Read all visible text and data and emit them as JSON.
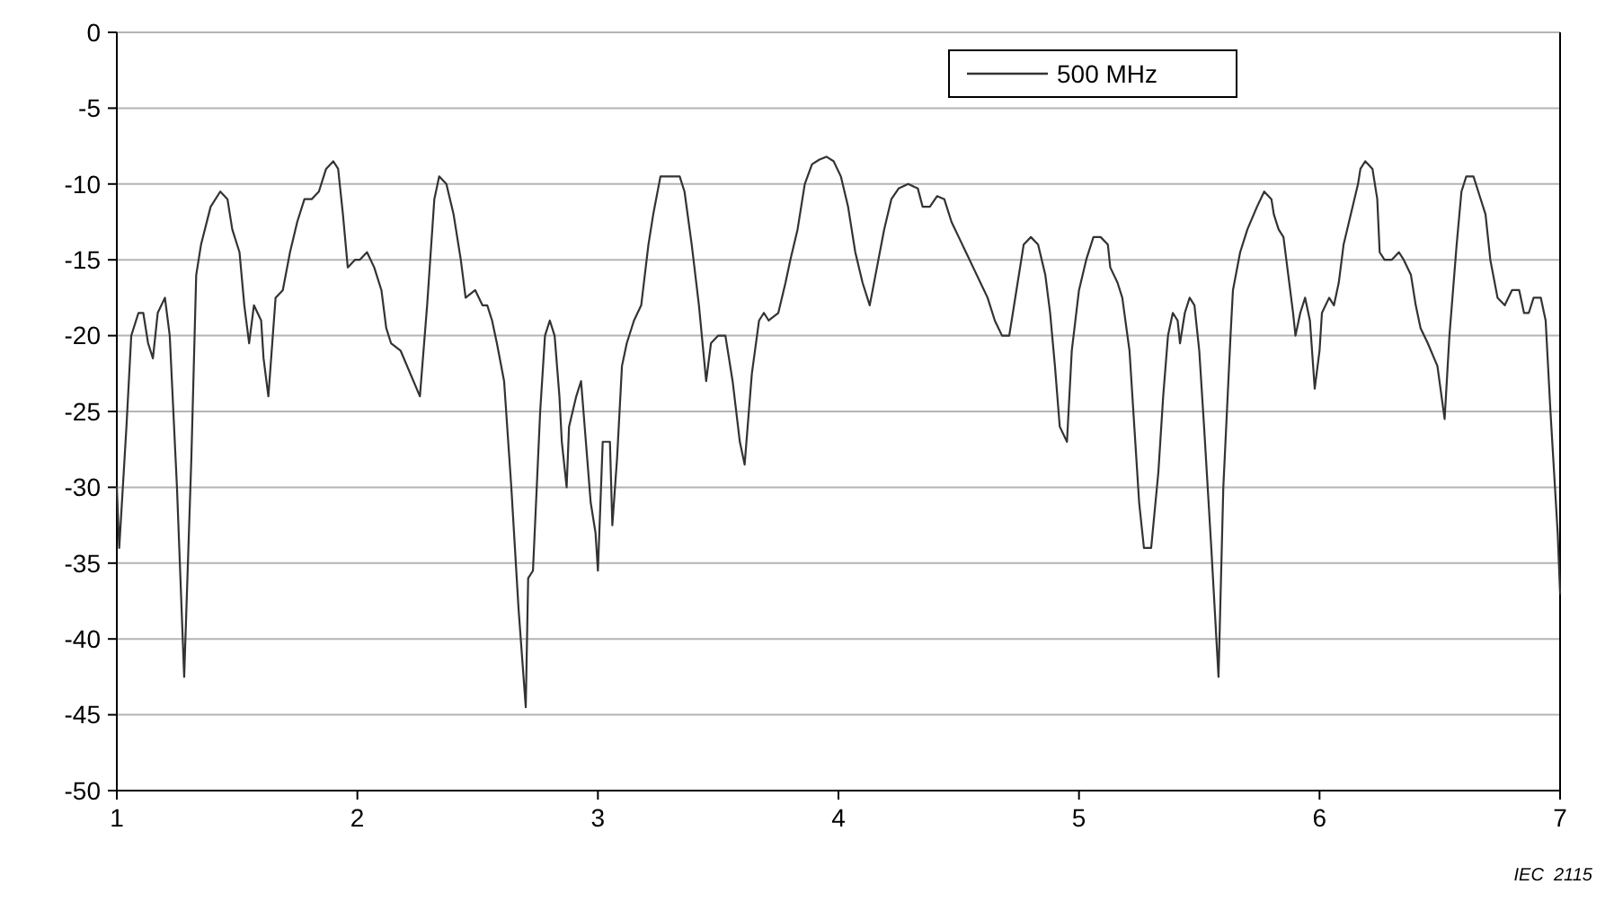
{
  "chart_data": {
    "type": "line",
    "xlim": [
      1,
      7
    ],
    "xticks": [
      1,
      2,
      3,
      4,
      5,
      6,
      7
    ],
    "ylim": [
      -50,
      0
    ],
    "yticks": [
      -50,
      -45,
      -40,
      -35,
      -30,
      -25,
      -20,
      -15,
      -10,
      -5,
      0
    ],
    "grid": "y",
    "legend": "top right",
    "marker": "none",
    "line_style": "solid",
    "annotations": [
      "IEC  2115"
    ],
    "series": [
      {
        "name": "500 MHz",
        "color": "#333333",
        "x": [
          1.0,
          1.01,
          1.04,
          1.06,
          1.09,
          1.11,
          1.13,
          1.15,
          1.17,
          1.2,
          1.22,
          1.25,
          1.28,
          1.31,
          1.33,
          1.35,
          1.39,
          1.43,
          1.46,
          1.48,
          1.51,
          1.53,
          1.55,
          1.57,
          1.6,
          1.61,
          1.63,
          1.66,
          1.69,
          1.72,
          1.75,
          1.78,
          1.81,
          1.84,
          1.87,
          1.9,
          1.92,
          1.94,
          1.96,
          1.99,
          2.01,
          2.04,
          2.07,
          2.1,
          2.12,
          2.14,
          2.18,
          2.26,
          2.29,
          2.32,
          2.34,
          2.37,
          2.4,
          2.43,
          2.45,
          2.49,
          2.52,
          2.54,
          2.56,
          2.58,
          2.61,
          2.64,
          2.67,
          2.7,
          2.71,
          2.73,
          2.76,
          2.78,
          2.8,
          2.82,
          2.84,
          2.85,
          2.87,
          2.88,
          2.91,
          2.93,
          2.94,
          2.97,
          2.99,
          3.0,
          3.02,
          3.05,
          3.06,
          3.08,
          3.1,
          3.12,
          3.15,
          3.18,
          3.21,
          3.23,
          3.26,
          3.29,
          3.34,
          3.36,
          3.39,
          3.42,
          3.45,
          3.47,
          3.5,
          3.53,
          3.56,
          3.59,
          3.61,
          3.64,
          3.67,
          3.69,
          3.71,
          3.75,
          3.78,
          3.8,
          3.83,
          3.86,
          3.89,
          3.92,
          3.95,
          3.98,
          4.01,
          4.04,
          4.07,
          4.1,
          4.13,
          4.16,
          4.19,
          4.22,
          4.25,
          4.29,
          4.33,
          4.35,
          4.38,
          4.41,
          4.44,
          4.47,
          4.5,
          4.53,
          4.56,
          4.59,
          4.62,
          4.65,
          4.68,
          4.71,
          4.74,
          4.77,
          4.8,
          4.83,
          4.86,
          4.88,
          4.9,
          4.92,
          4.95,
          4.97,
          5.0,
          5.03,
          5.06,
          5.09,
          5.12,
          5.13,
          5.16,
          5.18,
          5.21,
          5.23,
          5.25,
          5.27,
          5.3,
          5.33,
          5.35,
          5.37,
          5.39,
          5.41,
          5.42,
          5.44,
          5.46,
          5.48,
          5.5,
          5.52,
          5.55,
          5.58,
          5.6,
          5.63,
          5.64,
          5.67,
          5.7,
          5.74,
          5.77,
          5.8,
          5.81,
          5.83,
          5.85,
          5.87,
          5.89,
          5.9,
          5.92,
          5.94,
          5.96,
          5.98,
          6.0,
          6.01,
          6.04,
          6.06,
          6.08,
          6.1,
          6.13,
          6.16,
          6.17,
          6.19,
          6.22,
          6.24,
          6.25,
          6.27,
          6.3,
          6.33,
          6.35,
          6.38,
          6.4,
          6.42,
          6.45,
          6.49,
          6.52,
          6.54,
          6.57,
          6.59,
          6.61,
          6.64,
          6.66,
          6.69,
          6.71,
          6.74,
          6.77,
          6.8,
          6.83,
          6.85,
          6.87,
          6.89,
          6.92,
          6.94,
          6.96,
          6.99,
          7.0
        ],
        "values": [
          -30,
          -34,
          -26,
          -20,
          -18.5,
          -18.5,
          -20.5,
          -21.5,
          -18.5,
          -17.5,
          -20,
          -30,
          -42.5,
          -28,
          -16,
          -14,
          -11.5,
          -10.5,
          -11,
          -13,
          -14.5,
          -18,
          -20.5,
          -18,
          -19,
          -21.5,
          -24,
          -17.5,
          -17,
          -14.5,
          -12.5,
          -11,
          -11,
          -10.5,
          -9,
          -8.5,
          -9,
          -12,
          -15.5,
          -15,
          -15,
          -14.5,
          -15.5,
          -17,
          -19.5,
          -20.5,
          -21,
          -24,
          -18,
          -11,
          -9.5,
          -10,
          -12,
          -15,
          -17.5,
          -17,
          -18,
          -18,
          -19,
          -20.5,
          -23,
          -30,
          -38,
          -44.5,
          -36,
          -35.5,
          -25,
          -20,
          -19,
          -20,
          -24,
          -27,
          -30,
          -26,
          -24,
          -23,
          -25,
          -31,
          -33,
          -35.5,
          -27,
          -27,
          -32.5,
          -28,
          -22,
          -20.5,
          -19,
          -18,
          -14,
          -12,
          -9.5,
          -9.5,
          -9.5,
          -10.5,
          -14,
          -18,
          -23,
          -20.5,
          -20,
          -20,
          -23,
          -27,
          -28.5,
          -22.5,
          -19,
          -18.5,
          -19,
          -18.5,
          -16.5,
          -15,
          -13,
          -10,
          -8.7,
          -8.4,
          -8.2,
          -8.5,
          -9.5,
          -11.5,
          -14.5,
          -16.5,
          -18,
          -15.5,
          -13,
          -11,
          -10.3,
          -10,
          -10.3,
          -11.5,
          -11.5,
          -10.8,
          -11,
          -12.5,
          -13.5,
          -14.5,
          -15.5,
          -16.5,
          -17.5,
          -19,
          -20,
          -20,
          -17,
          -14,
          -13.5,
          -14,
          -16,
          -18.5,
          -22,
          -26,
          -27,
          -21,
          -17,
          -15,
          -13.5,
          -13.5,
          -14,
          -15.5,
          -16.5,
          -17.5,
          -21,
          -26,
          -31,
          -34,
          -34,
          -29,
          -24,
          -20,
          -18.5,
          -19,
          -20.5,
          -18.5,
          -17.5,
          -18,
          -21,
          -26,
          -34,
          -42.5,
          -30,
          -20,
          -17,
          -14.5,
          -13,
          -11.5,
          -10.5,
          -11,
          -12,
          -13,
          -13.5,
          -16,
          -18.5,
          -20,
          -18.5,
          -17.5,
          -19,
          -23.5,
          -21,
          -18.5,
          -17.5,
          -18,
          -16.5,
          -14,
          -12,
          -10,
          -9,
          -8.5,
          -9,
          -11,
          -14.5,
          -15,
          -15,
          -14.5,
          -15,
          -16,
          -18,
          -19.5,
          -20.5,
          -22,
          -25.5,
          -20,
          -14,
          -10.5,
          -9.5,
          -9.5,
          -10.5,
          -12,
          -15,
          -17.5,
          -18,
          -17,
          -17,
          -18.5,
          -18.5,
          -17.5,
          -17.5,
          -19,
          -25,
          -33,
          -37
        ]
      }
    ]
  }
}
